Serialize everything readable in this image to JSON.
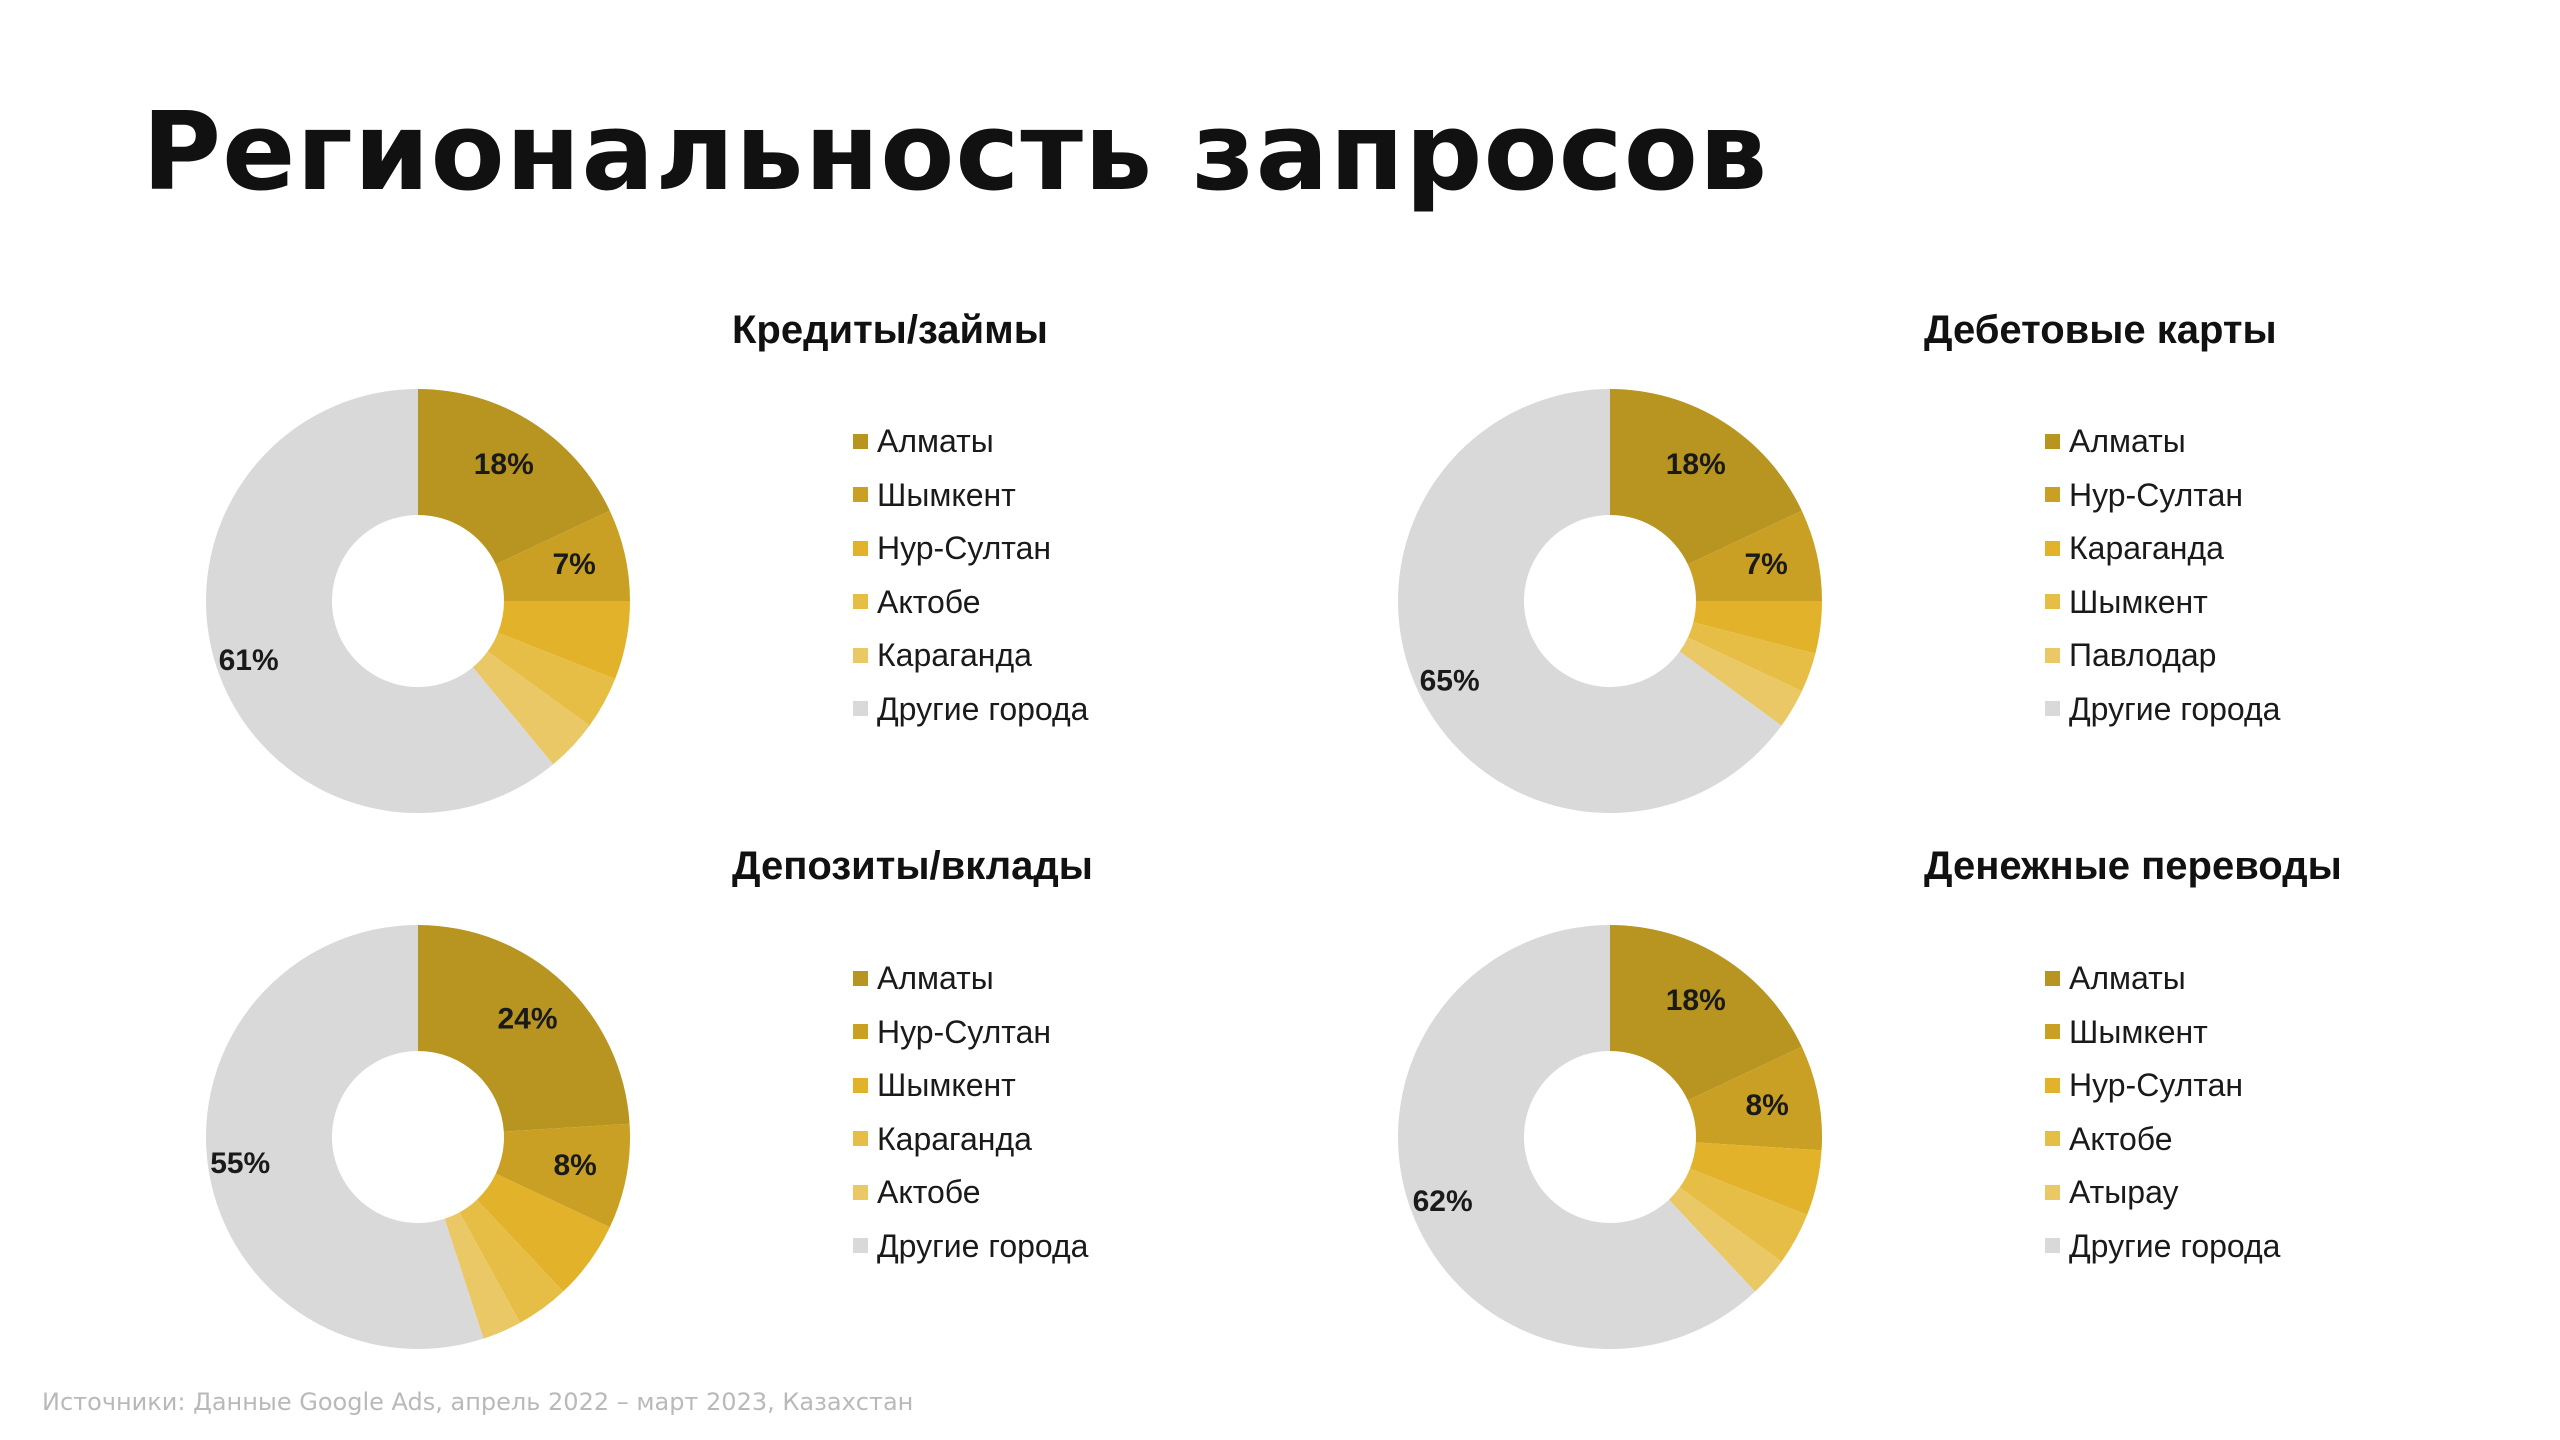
{
  "title": "Региональность запросов",
  "source": "Источники: Данные Google Ads, апрель 2022 – март 2023, Казахстан",
  "colors": {
    "accent_1": "#B89420",
    "accent_2": "#C9A024",
    "accent_3": "#E2B22A",
    "accent_4": "#E7BE45",
    "accent_5": "#EBC866",
    "other": "#D9D9D9"
  },
  "chart_data": [
    {
      "type": "pie",
      "variant": "donut",
      "title": "Кредиты/займы",
      "legend_position": "right",
      "categories": [
        "Алматы",
        "Шымкент",
        "Нур-Султан",
        "Актобе",
        "Караганда",
        "Другие города"
      ],
      "values": [
        18,
        7,
        6,
        4,
        4,
        61
      ],
      "labels": [
        "18%",
        "7%",
        "",
        "",
        "",
        "61%"
      ],
      "colors": [
        "#B89420",
        "#C9A024",
        "#E2B22A",
        "#E7BE45",
        "#EBC866",
        "#D9D9D9"
      ]
    },
    {
      "type": "pie",
      "variant": "donut",
      "title": "Дебетовые карты",
      "legend_position": "right",
      "categories": [
        "Алматы",
        "Нур-Султан",
        "Караганда",
        "Шымкент",
        "Павлодар",
        "Другие города"
      ],
      "values": [
        18,
        7,
        4,
        3,
        3,
        65
      ],
      "labels": [
        "18%",
        "7%",
        "",
        "",
        "",
        "65%"
      ],
      "colors": [
        "#B89420",
        "#C9A024",
        "#E2B22A",
        "#E7BE45",
        "#EBC866",
        "#D9D9D9"
      ]
    },
    {
      "type": "pie",
      "variant": "donut",
      "title": "Депозиты/вклады",
      "legend_position": "right",
      "categories": [
        "Алматы",
        "Нур-Султан",
        "Шымкент",
        "Караганда",
        "Актобе",
        "Другие города"
      ],
      "values": [
        24,
        8,
        6,
        4,
        3,
        55
      ],
      "labels": [
        "24%",
        "8%",
        "",
        "",
        "",
        "55%"
      ],
      "colors": [
        "#B89420",
        "#C9A024",
        "#E2B22A",
        "#E7BE45",
        "#EBC866",
        "#D9D9D9"
      ]
    },
    {
      "type": "pie",
      "variant": "donut",
      "title": "Денежные переводы",
      "legend_position": "right",
      "categories": [
        "Алматы",
        "Шымкент",
        "Нур-Султан",
        "Актобе",
        "Атырау",
        "Другие города"
      ],
      "values": [
        18,
        8,
        5,
        4,
        3,
        62
      ],
      "labels": [
        "18%",
        "8%",
        "",
        "",
        "",
        "62%"
      ],
      "colors": [
        "#B89420",
        "#C9A024",
        "#E2B22A",
        "#E7BE45",
        "#EBC866",
        "#D9D9D9"
      ]
    }
  ]
}
